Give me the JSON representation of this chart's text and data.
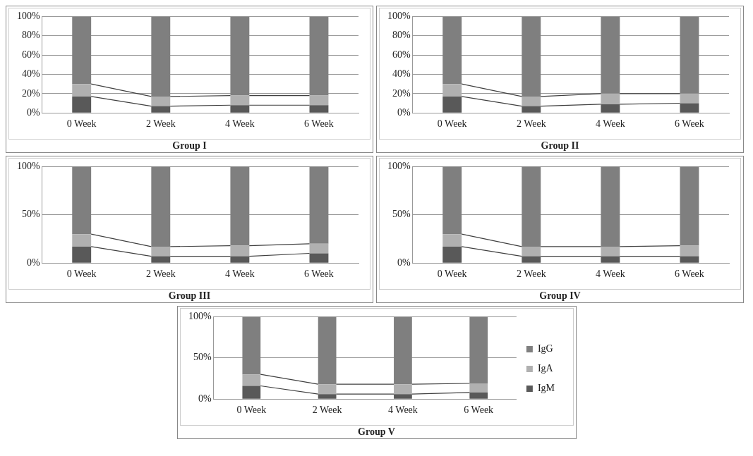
{
  "chart_data": [
    {
      "type": "bar",
      "title": "Group I",
      "stacked": true,
      "categories": [
        "0 Week",
        "2 Week",
        "4 Week",
        "6 Week"
      ],
      "ylim": [
        0,
        100
      ],
      "yticks": [
        {
          "value": 0,
          "label": "0%"
        },
        {
          "value": 20,
          "label": "20%"
        },
        {
          "value": 40,
          "label": "40%"
        },
        {
          "value": 60,
          "label": "60%"
        },
        {
          "value": 80,
          "label": "80%"
        },
        {
          "value": 100,
          "label": "100%"
        }
      ],
      "grid": "y",
      "legend": false,
      "series": [
        {
          "color": "#595959",
          "values": [
            17,
            7,
            8,
            8
          ]
        },
        {
          "color": "#b0b0b0",
          "values": [
            13,
            10,
            10,
            10
          ]
        },
        {
          "color": "#7f7f7f",
          "values": [
            70,
            83,
            82,
            82
          ]
        }
      ]
    },
    {
      "type": "bar",
      "title": "Group II",
      "stacked": true,
      "categories": [
        "0 Week",
        "2 Week",
        "4 Week",
        "6 Week"
      ],
      "ylim": [
        0,
        100
      ],
      "yticks": [
        {
          "value": 0,
          "label": "0%"
        },
        {
          "value": 20,
          "label": "20%"
        },
        {
          "value": 40,
          "label": "40%"
        },
        {
          "value": 60,
          "label": "60%"
        },
        {
          "value": 80,
          "label": "80%"
        },
        {
          "value": 100,
          "label": "100%"
        }
      ],
      "grid": "y",
      "legend": false,
      "series": [
        {
          "color": "#595959",
          "values": [
            17,
            7,
            9,
            10
          ]
        },
        {
          "color": "#b0b0b0",
          "values": [
            13,
            10,
            11,
            10
          ]
        },
        {
          "color": "#7f7f7f",
          "values": [
            70,
            83,
            80,
            80
          ]
        }
      ]
    },
    {
      "type": "bar",
      "title": "Group III",
      "stacked": true,
      "categories": [
        "0 Week",
        "2 Week",
        "4 Week",
        "6 Week"
      ],
      "ylim": [
        0,
        100
      ],
      "yticks": [
        {
          "value": 0,
          "label": "0%"
        },
        {
          "value": 50,
          "label": "50%"
        },
        {
          "value": 100,
          "label": "100%"
        }
      ],
      "grid": "y",
      "legend": false,
      "series": [
        {
          "color": "#595959",
          "values": [
            17,
            7,
            7,
            10
          ]
        },
        {
          "color": "#b0b0b0",
          "values": [
            13,
            10,
            11,
            10
          ]
        },
        {
          "color": "#7f7f7f",
          "values": [
            70,
            83,
            82,
            80
          ]
        }
      ]
    },
    {
      "type": "bar",
      "title": "Group IV",
      "stacked": true,
      "categories": [
        "0 Week",
        "2 Week",
        "4 Week",
        "6 Week"
      ],
      "ylim": [
        0,
        100
      ],
      "yticks": [
        {
          "value": 0,
          "label": "0%"
        },
        {
          "value": 50,
          "label": "50%"
        },
        {
          "value": 100,
          "label": "100%"
        }
      ],
      "grid": "y",
      "legend": false,
      "series": [
        {
          "color": "#595959",
          "values": [
            17,
            7,
            7,
            7
          ]
        },
        {
          "color": "#b0b0b0",
          "values": [
            13,
            10,
            10,
            11
          ]
        },
        {
          "color": "#7f7f7f",
          "values": [
            70,
            83,
            83,
            82
          ]
        }
      ]
    },
    {
      "type": "bar",
      "title": "Group V",
      "stacked": true,
      "categories": [
        "0 Week",
        "2 Week",
        "4 Week",
        "6 Week"
      ],
      "ylim": [
        0,
        100
      ],
      "yticks": [
        {
          "value": 0,
          "label": "0%"
        },
        {
          "value": 50,
          "label": "50%"
        },
        {
          "value": 100,
          "label": "100%"
        }
      ],
      "grid": "y",
      "legend": "right",
      "series": [
        {
          "name": "IgM",
          "color": "#595959",
          "values": [
            16,
            6,
            6,
            8
          ]
        },
        {
          "name": "IgA",
          "color": "#b0b0b0",
          "values": [
            14,
            12,
            12,
            11
          ]
        },
        {
          "name": "IgG",
          "color": "#7f7f7f",
          "values": [
            70,
            82,
            82,
            81
          ]
        }
      ]
    }
  ]
}
